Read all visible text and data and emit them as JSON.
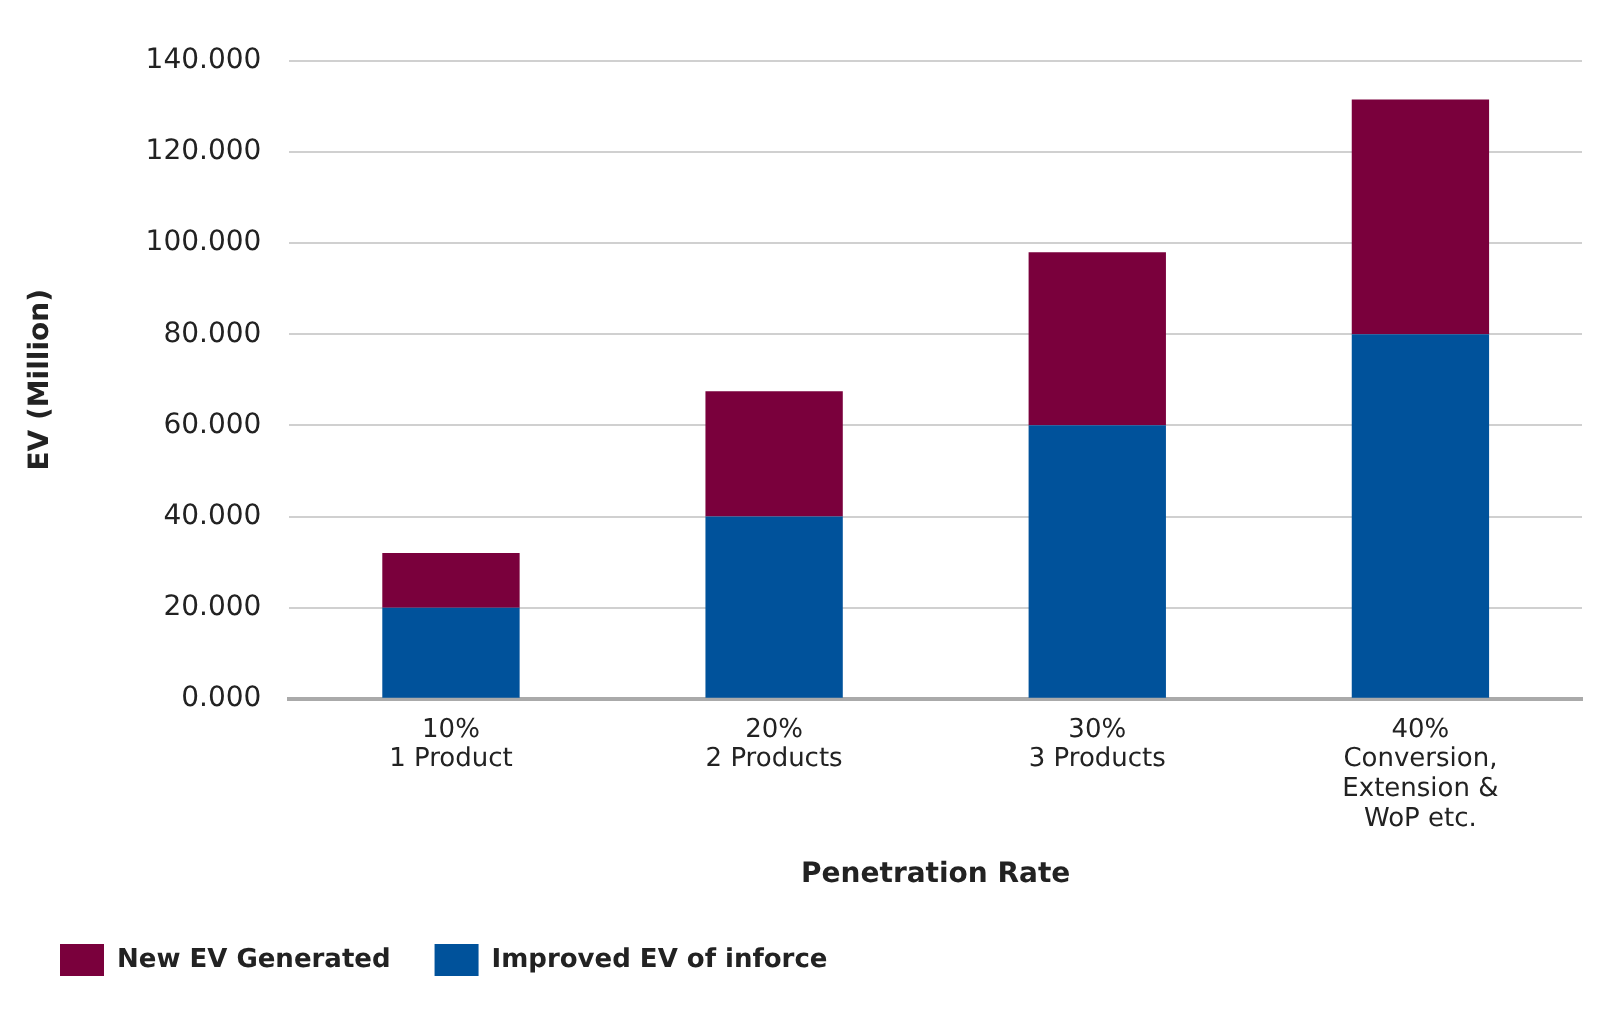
{
  "chart_data": {
    "type": "bar",
    "stacked": true,
    "xlabel": "Penetration Rate",
    "ylabel": "EV (Million)",
    "categories": [
      "10%\n1 Product",
      "20%\n2 Products",
      "30%\n3 Products",
      "40%\nConversion,\nExtension &\nWoP etc."
    ],
    "series": [
      {
        "name": "Improved EV of inforce",
        "color": "#00529b",
        "values": [
          20,
          40,
          60,
          80
        ]
      },
      {
        "name": "New EV Generated",
        "color": "#7a003c",
        "values": [
          12,
          27.5,
          38,
          51.5
        ]
      }
    ],
    "ylim": [
      0,
      140
    ],
    "yticks": [
      {
        "value": 0,
        "label": "0.000"
      },
      {
        "value": 20,
        "label": "20.000"
      },
      {
        "value": 40,
        "label": "40.000"
      },
      {
        "value": 60,
        "label": "60.000"
      },
      {
        "value": 80,
        "label": "80.000"
      },
      {
        "value": 100,
        "label": "100.000"
      },
      {
        "value": 120,
        "label": "120.000"
      },
      {
        "value": 140,
        "label": "140.000"
      }
    ],
    "grid": "y",
    "legend": "bottom"
  }
}
